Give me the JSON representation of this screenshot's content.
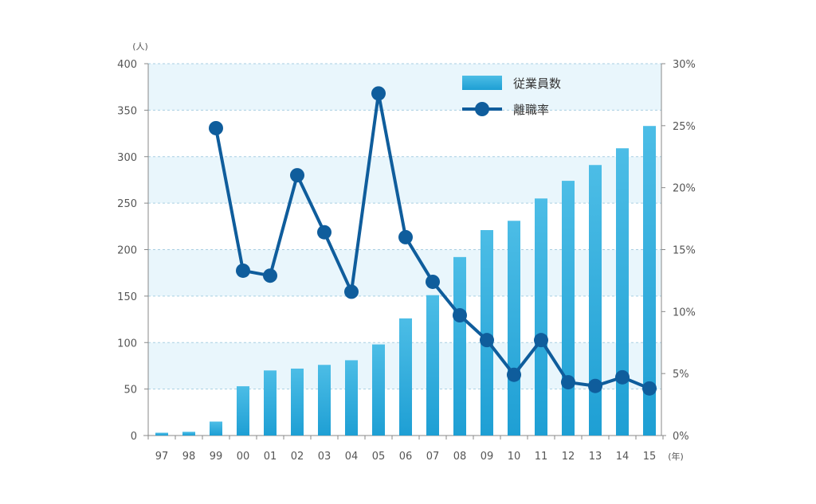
{
  "chart_data": {
    "type": "bar",
    "categories": [
      "97",
      "98",
      "99",
      "00",
      "01",
      "02",
      "03",
      "04",
      "05",
      "06",
      "07",
      "08",
      "09",
      "10",
      "11",
      "12",
      "13",
      "14",
      "15"
    ],
    "series": [
      {
        "name": "従業員数",
        "type": "bar",
        "axis": "left",
        "values": [
          3,
          4,
          15,
          53,
          70,
          72,
          76,
          81,
          98,
          126,
          151,
          192,
          221,
          231,
          255,
          274,
          291,
          309,
          333
        ]
      },
      {
        "name": "離職率",
        "type": "line",
        "axis": "right",
        "values": [
          null,
          null,
          24.8,
          13.3,
          12.9,
          21.0,
          16.4,
          11.6,
          27.6,
          16.0,
          12.4,
          9.7,
          7.7,
          4.9,
          7.7,
          4.3,
          4.0,
          4.7,
          3.8
        ]
      }
    ],
    "y_left": {
      "min": 0,
      "max": 400,
      "ticks": [
        0,
        50,
        100,
        150,
        200,
        250,
        300,
        350,
        400
      ],
      "unit": "(人)"
    },
    "y_right": {
      "min": 0,
      "max": 30,
      "ticks": [
        0,
        5,
        10,
        15,
        20,
        25,
        30
      ],
      "suffix": "%"
    },
    "x_unit": "(年)",
    "legend_position": "top-right",
    "grid": true,
    "colors": {
      "bar": "#3aafdd",
      "bar_dark": "#1e9fd4",
      "line": "#0f5d9c",
      "band": "#e9f6fc",
      "grid": "#a9cfe2",
      "axis": "#888888"
    }
  }
}
